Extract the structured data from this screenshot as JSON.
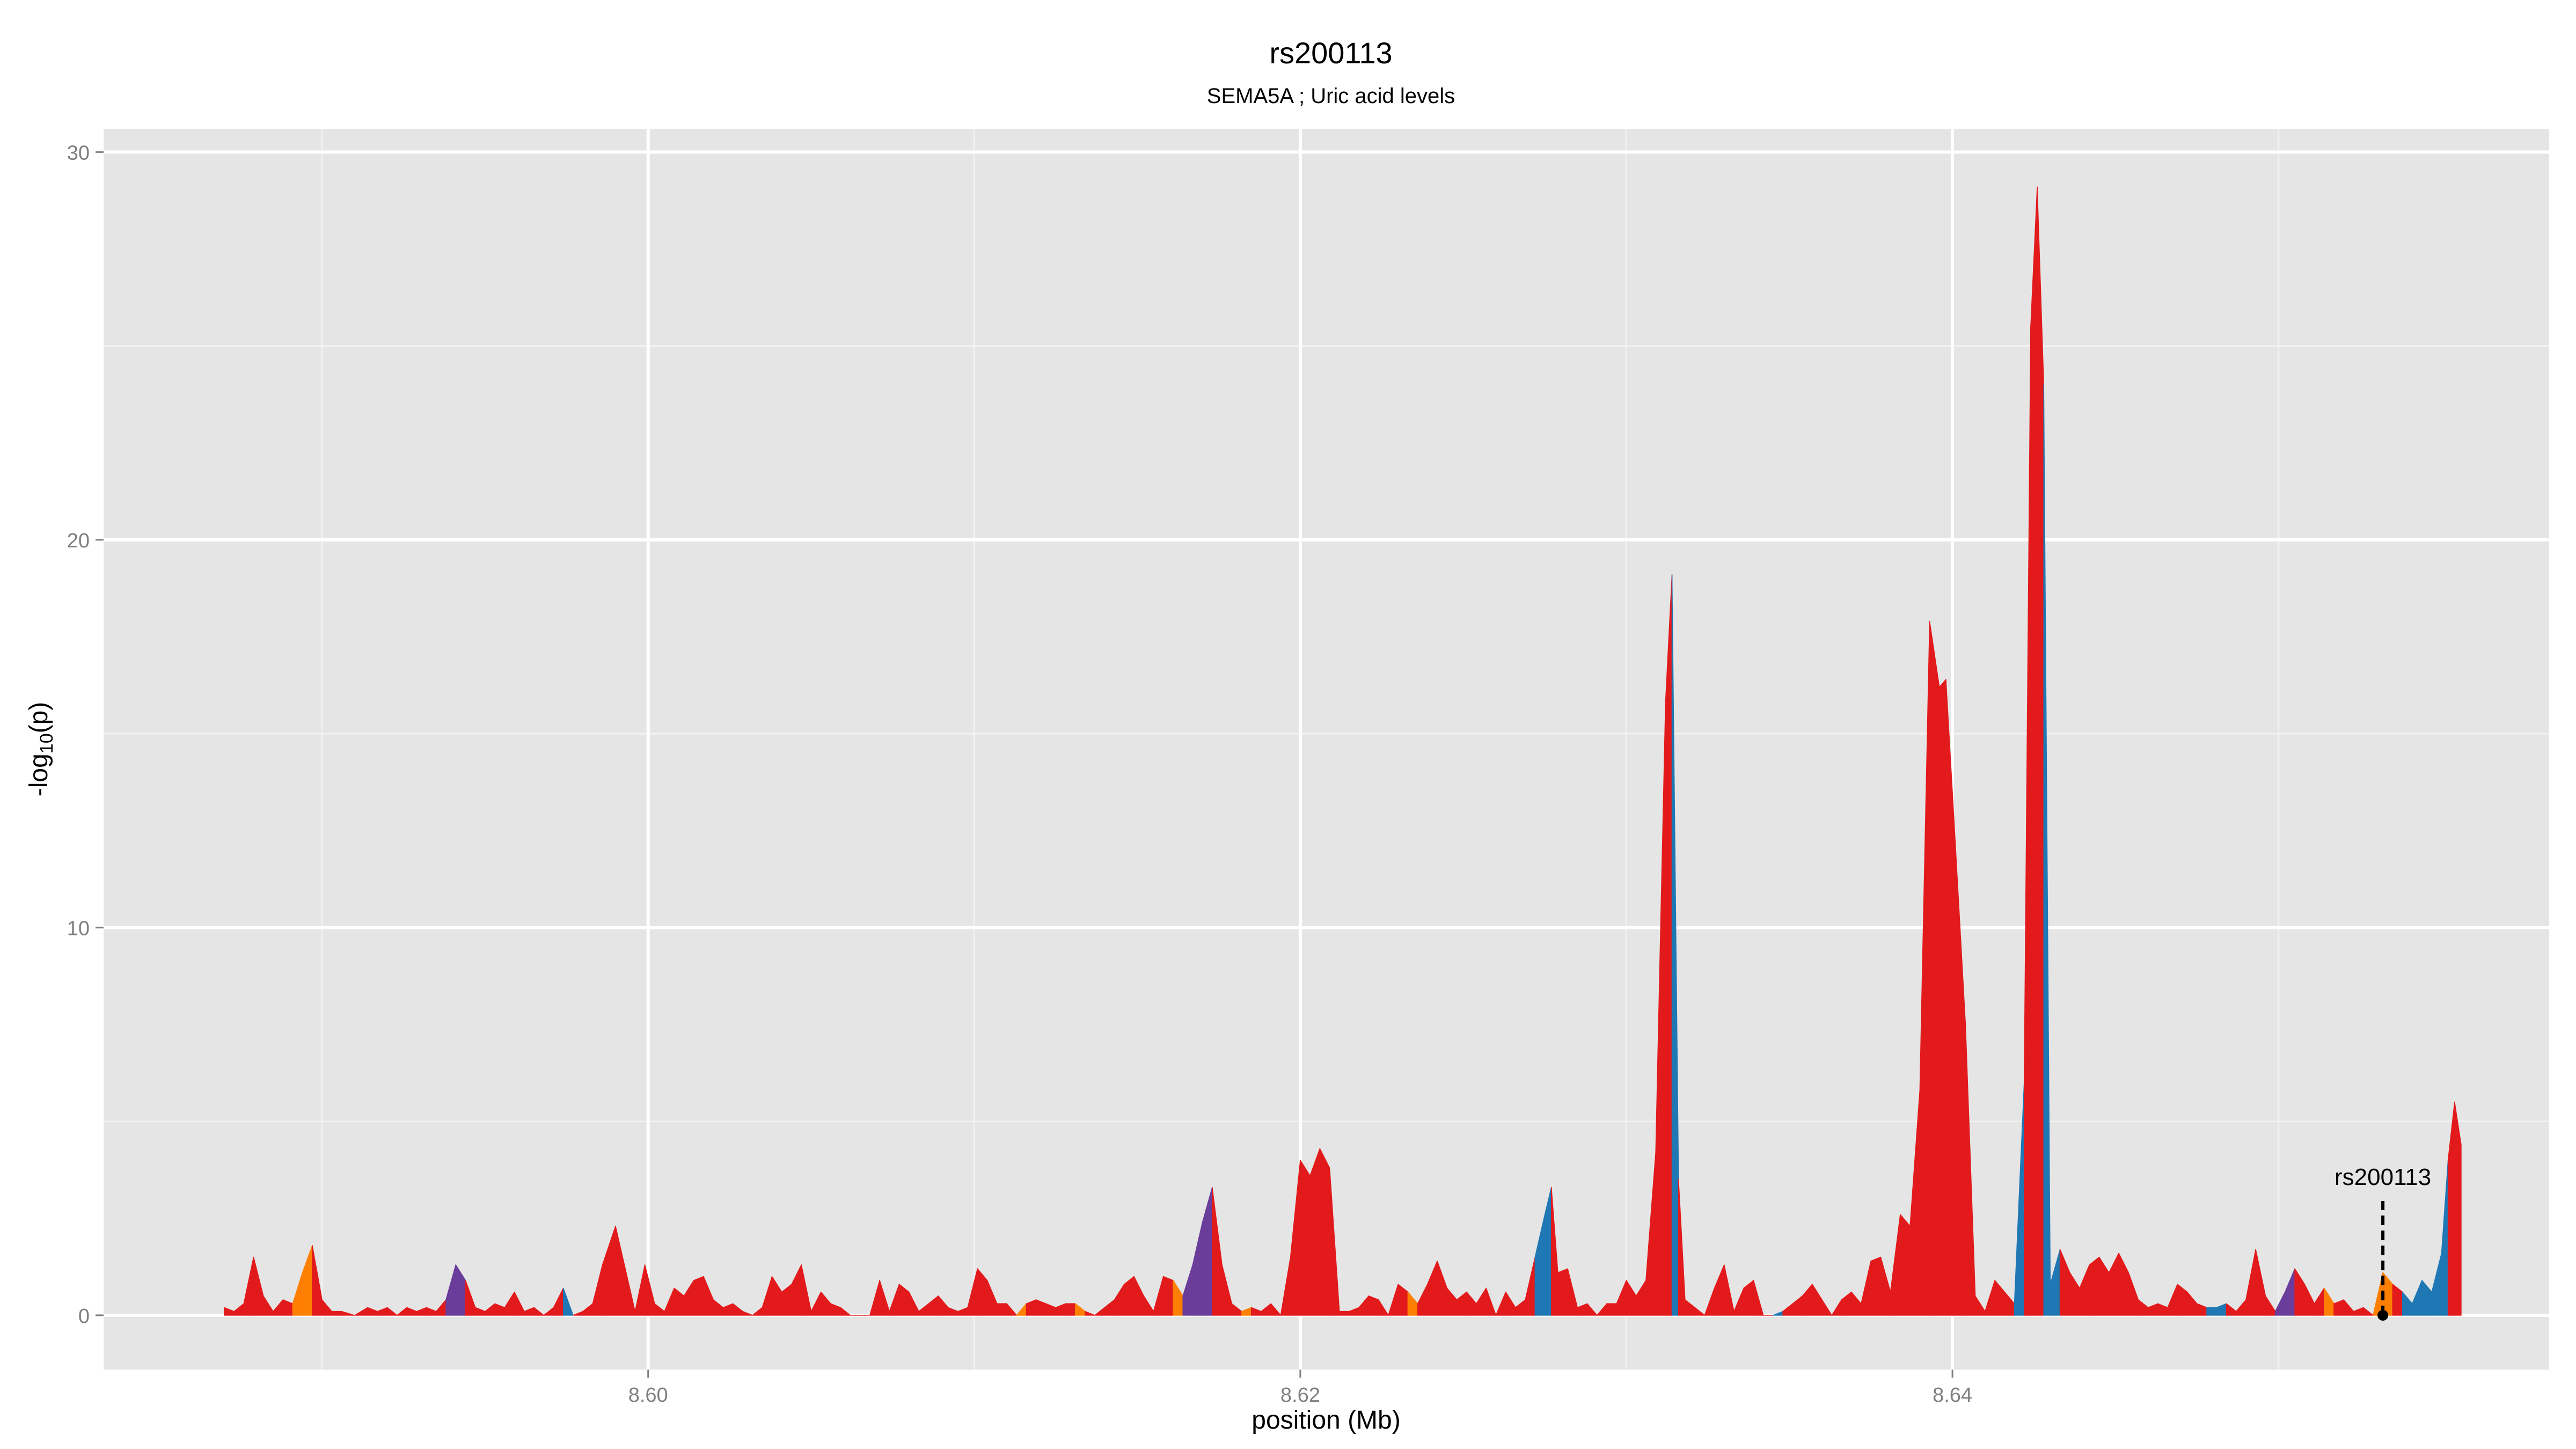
{
  "chart_data": {
    "type": "area",
    "title": "rs200113",
    "subtitle": "SEMA5A ; Uric acid levels",
    "xlabel": "position (Mb)",
    "ylabel": "-log10(p)",
    "ylabel_parts": {
      "prefix": "-log",
      "sub": "10",
      "suffix": "(p)"
    },
    "xlim": [
      8.5833,
      8.6583
    ],
    "ylim": [
      -1.4,
      30.6
    ],
    "xticks": [
      8.6,
      8.62,
      8.64
    ],
    "xtick_labels": [
      "8.60",
      "8.62",
      "8.64"
    ],
    "yticks": [
      0,
      10,
      20,
      30
    ],
    "ytick_labels": [
      "0",
      "10",
      "20",
      "30"
    ],
    "grid": true,
    "background": "#e5e5e5",
    "colors": {
      "red": "#e31a1c",
      "blue": "#1f78b4",
      "orange": "#ff7f00",
      "purple": "#6a3d9a"
    },
    "series": [
      {
        "points": [
          [
            8.587,
            0.2,
            "red"
          ],
          [
            8.5873,
            0.1,
            "red"
          ],
          [
            8.5876,
            0.3,
            "red"
          ],
          [
            8.5879,
            1.5,
            "red"
          ],
          [
            8.5882,
            0.5,
            "red"
          ],
          [
            8.5885,
            0.1,
            "red"
          ],
          [
            8.5888,
            0.4,
            "red"
          ],
          [
            8.5891,
            0.3,
            "red"
          ],
          [
            8.5894,
            1.1,
            "orange"
          ],
          [
            8.5897,
            1.8,
            "orange"
          ],
          [
            8.59,
            0.4,
            "red"
          ],
          [
            8.5903,
            0.1,
            "red"
          ],
          [
            8.5906,
            0.1,
            "red"
          ],
          [
            8.591,
            0.0,
            "red"
          ],
          [
            8.5914,
            0.2,
            "red"
          ],
          [
            8.5917,
            0.1,
            "red"
          ],
          [
            8.592,
            0.2,
            "red"
          ],
          [
            8.5923,
            0.0,
            "red"
          ],
          [
            8.5926,
            0.2,
            "red"
          ],
          [
            8.5929,
            0.1,
            "red"
          ],
          [
            8.5932,
            0.2,
            "red"
          ],
          [
            8.5935,
            0.1,
            "red"
          ],
          [
            8.5938,
            0.4,
            "red"
          ],
          [
            8.5941,
            1.3,
            "purple"
          ],
          [
            8.5944,
            0.9,
            "purple"
          ],
          [
            8.5947,
            0.2,
            "red"
          ],
          [
            8.595,
            0.1,
            "red"
          ],
          [
            8.5953,
            0.3,
            "red"
          ],
          [
            8.5956,
            0.2,
            "red"
          ],
          [
            8.5959,
            0.6,
            "red"
          ],
          [
            8.5962,
            0.1,
            "red"
          ],
          [
            8.5965,
            0.2,
            "red"
          ],
          [
            8.5968,
            0.0,
            "red"
          ],
          [
            8.5971,
            0.2,
            "red"
          ],
          [
            8.5974,
            0.7,
            "red"
          ],
          [
            8.5977,
            0.0,
            "blue"
          ],
          [
            8.598,
            0.1,
            "red"
          ],
          [
            8.5983,
            0.3,
            "red"
          ],
          [
            8.5986,
            1.3,
            "red"
          ],
          [
            8.599,
            2.3,
            "red"
          ],
          [
            8.5993,
            1.2,
            "red"
          ],
          [
            8.5996,
            0.1,
            "red"
          ],
          [
            8.5999,
            1.3,
            "red"
          ],
          [
            8.6002,
            0.3,
            "red"
          ],
          [
            8.6005,
            0.1,
            "red"
          ],
          [
            8.6008,
            0.7,
            "red"
          ],
          [
            8.6011,
            0.5,
            "red"
          ],
          [
            8.6014,
            0.9,
            "red"
          ],
          [
            8.6017,
            1.0,
            "red"
          ],
          [
            8.602,
            0.4,
            "red"
          ],
          [
            8.6023,
            0.2,
            "red"
          ],
          [
            8.6026,
            0.3,
            "red"
          ],
          [
            8.6029,
            0.1,
            "red"
          ],
          [
            8.6032,
            0.0,
            "red"
          ],
          [
            8.6035,
            0.2,
            "red"
          ],
          [
            8.6038,
            1.0,
            "red"
          ],
          [
            8.6041,
            0.6,
            "red"
          ],
          [
            8.6044,
            0.8,
            "red"
          ],
          [
            8.6047,
            1.3,
            "red"
          ],
          [
            8.605,
            0.1,
            "red"
          ],
          [
            8.6053,
            0.6,
            "red"
          ],
          [
            8.6056,
            0.3,
            "red"
          ],
          [
            8.6059,
            0.2,
            "red"
          ],
          [
            8.6062,
            0.0,
            "red"
          ],
          [
            8.6065,
            0.0,
            "red"
          ],
          [
            8.6068,
            0.0,
            "red"
          ],
          [
            8.6071,
            0.9,
            "red"
          ],
          [
            8.6074,
            0.1,
            "red"
          ],
          [
            8.6077,
            0.8,
            "red"
          ],
          [
            8.608,
            0.6,
            "red"
          ],
          [
            8.6083,
            0.1,
            "red"
          ],
          [
            8.6086,
            0.3,
            "red"
          ],
          [
            8.6089,
            0.5,
            "red"
          ],
          [
            8.6092,
            0.2,
            "red"
          ],
          [
            8.6095,
            0.1,
            "red"
          ],
          [
            8.6098,
            0.2,
            "red"
          ],
          [
            8.6101,
            1.2,
            "red"
          ],
          [
            8.6104,
            0.9,
            "red"
          ],
          [
            8.6107,
            0.3,
            "red"
          ],
          [
            8.611,
            0.3,
            "red"
          ],
          [
            8.6113,
            0.0,
            "red"
          ],
          [
            8.6116,
            0.3,
            "orange"
          ],
          [
            8.6119,
            0.4,
            "red"
          ],
          [
            8.6122,
            0.3,
            "red"
          ],
          [
            8.6125,
            0.2,
            "red"
          ],
          [
            8.6128,
            0.3,
            "red"
          ],
          [
            8.6131,
            0.3,
            "red"
          ],
          [
            8.6134,
            0.1,
            "orange"
          ],
          [
            8.6137,
            0.0,
            "red"
          ],
          [
            8.614,
            0.2,
            "red"
          ],
          [
            8.6143,
            0.4,
            "red"
          ],
          [
            8.6146,
            0.8,
            "red"
          ],
          [
            8.6149,
            1.0,
            "red"
          ],
          [
            8.6152,
            0.5,
            "red"
          ],
          [
            8.6155,
            0.1,
            "red"
          ],
          [
            8.6158,
            1.0,
            "red"
          ],
          [
            8.6161,
            0.9,
            "red"
          ],
          [
            8.6164,
            0.5,
            "orange"
          ],
          [
            8.6167,
            1.3,
            "purple"
          ],
          [
            8.617,
            2.4,
            "purple"
          ],
          [
            8.6173,
            3.3,
            "purple"
          ],
          [
            8.6176,
            1.3,
            "red"
          ],
          [
            8.6179,
            0.3,
            "red"
          ],
          [
            8.6182,
            0.1,
            "red"
          ],
          [
            8.6185,
            0.2,
            "orange"
          ],
          [
            8.6188,
            0.1,
            "red"
          ],
          [
            8.6191,
            0.3,
            "red"
          ],
          [
            8.6194,
            0.0,
            "red"
          ],
          [
            8.6197,
            1.5,
            "red"
          ],
          [
            8.62,
            4.0,
            "red"
          ],
          [
            8.6203,
            3.6,
            "red"
          ],
          [
            8.6206,
            4.3,
            "red"
          ],
          [
            8.6209,
            3.8,
            "red"
          ],
          [
            8.6212,
            0.1,
            "red"
          ],
          [
            8.6215,
            0.1,
            "red"
          ],
          [
            8.6218,
            0.2,
            "red"
          ],
          [
            8.6221,
            0.5,
            "red"
          ],
          [
            8.6224,
            0.4,
            "red"
          ],
          [
            8.6227,
            0.0,
            "red"
          ],
          [
            8.623,
            0.8,
            "red"
          ],
          [
            8.6233,
            0.6,
            "red"
          ],
          [
            8.6236,
            0.3,
            "orange"
          ],
          [
            8.6239,
            0.8,
            "red"
          ],
          [
            8.6242,
            1.4,
            "red"
          ],
          [
            8.6245,
            0.7,
            "red"
          ],
          [
            8.6248,
            0.4,
            "red"
          ],
          [
            8.6251,
            0.6,
            "red"
          ],
          [
            8.6254,
            0.3,
            "red"
          ],
          [
            8.6257,
            0.7,
            "red"
          ],
          [
            8.626,
            0.0,
            "red"
          ],
          [
            8.6263,
            0.6,
            "red"
          ],
          [
            8.6266,
            0.2,
            "red"
          ],
          [
            8.6269,
            0.4,
            "red"
          ],
          [
            8.6272,
            1.5,
            "red"
          ],
          [
            8.6275,
            2.6,
            "blue"
          ],
          [
            8.6277,
            3.3,
            "blue"
          ],
          [
            8.6279,
            1.1,
            "red"
          ],
          [
            8.6282,
            1.2,
            "red"
          ],
          [
            8.6285,
            0.2,
            "red"
          ],
          [
            8.6288,
            0.3,
            "red"
          ],
          [
            8.6291,
            0.0,
            "red"
          ],
          [
            8.6294,
            0.3,
            "red"
          ],
          [
            8.6297,
            0.3,
            "red"
          ],
          [
            8.63,
            0.9,
            "red"
          ],
          [
            8.6303,
            0.5,
            "red"
          ],
          [
            8.6306,
            0.9,
            "red"
          ],
          [
            8.6309,
            4.2,
            "red"
          ],
          [
            8.6312,
            15.8,
            "red"
          ],
          [
            8.6314,
            19.1,
            "red"
          ],
          [
            8.6316,
            3.5,
            "blue"
          ],
          [
            8.6318,
            0.4,
            "red"
          ],
          [
            8.6321,
            0.2,
            "red"
          ],
          [
            8.6324,
            0.0,
            "red"
          ],
          [
            8.6327,
            0.7,
            "red"
          ],
          [
            8.633,
            1.3,
            "red"
          ],
          [
            8.6333,
            0.1,
            "red"
          ],
          [
            8.6336,
            0.7,
            "red"
          ],
          [
            8.6339,
            0.9,
            "red"
          ],
          [
            8.6342,
            0.0,
            "red"
          ],
          [
            8.6345,
            0.0,
            "red"
          ],
          [
            8.6348,
            0.1,
            "blue"
          ],
          [
            8.6351,
            0.3,
            "red"
          ],
          [
            8.6354,
            0.5,
            "red"
          ],
          [
            8.6357,
            0.8,
            "red"
          ],
          [
            8.636,
            0.4,
            "red"
          ],
          [
            8.6363,
            0.0,
            "red"
          ],
          [
            8.6366,
            0.4,
            "red"
          ],
          [
            8.6369,
            0.6,
            "red"
          ],
          [
            8.6372,
            0.3,
            "red"
          ],
          [
            8.6375,
            1.4,
            "red"
          ],
          [
            8.6378,
            1.5,
            "red"
          ],
          [
            8.6381,
            0.6,
            "red"
          ],
          [
            8.6384,
            2.6,
            "red"
          ],
          [
            8.6387,
            2.3,
            "red"
          ],
          [
            8.639,
            5.8,
            "red"
          ],
          [
            8.6393,
            17.9,
            "red"
          ],
          [
            8.6396,
            16.2,
            "red"
          ],
          [
            8.6398,
            16.4,
            "red"
          ],
          [
            8.6401,
            12.0,
            "red"
          ],
          [
            8.6404,
            7.5,
            "red"
          ],
          [
            8.6407,
            0.5,
            "red"
          ],
          [
            8.641,
            0.1,
            "red"
          ],
          [
            8.6413,
            0.9,
            "red"
          ],
          [
            8.6416,
            0.6,
            "red"
          ],
          [
            8.6419,
            0.3,
            "red"
          ],
          [
            8.6422,
            6.0,
            "blue"
          ],
          [
            8.6424,
            25.5,
            "red"
          ],
          [
            8.6426,
            29.1,
            "red"
          ],
          [
            8.6428,
            24.0,
            "red"
          ],
          [
            8.643,
            0.8,
            "blue"
          ],
          [
            8.6433,
            1.7,
            "blue"
          ],
          [
            8.6436,
            1.1,
            "red"
          ],
          [
            8.6439,
            0.7,
            "red"
          ],
          [
            8.6442,
            1.3,
            "red"
          ],
          [
            8.6445,
            1.5,
            "red"
          ],
          [
            8.6448,
            1.1,
            "red"
          ],
          [
            8.6451,
            1.6,
            "red"
          ],
          [
            8.6454,
            1.1,
            "red"
          ],
          [
            8.6457,
            0.4,
            "red"
          ],
          [
            8.646,
            0.2,
            "red"
          ],
          [
            8.6463,
            0.3,
            "red"
          ],
          [
            8.6466,
            0.2,
            "red"
          ],
          [
            8.6469,
            0.8,
            "red"
          ],
          [
            8.6472,
            0.6,
            "red"
          ],
          [
            8.6475,
            0.3,
            "red"
          ],
          [
            8.6478,
            0.2,
            "red"
          ],
          [
            8.6481,
            0.2,
            "blue"
          ],
          [
            8.6484,
            0.3,
            "blue"
          ],
          [
            8.6487,
            0.1,
            "red"
          ],
          [
            8.649,
            0.4,
            "red"
          ],
          [
            8.6493,
            1.7,
            "red"
          ],
          [
            8.6496,
            0.5,
            "red"
          ],
          [
            8.6499,
            0.1,
            "red"
          ],
          [
            8.6502,
            0.6,
            "purple"
          ],
          [
            8.6505,
            1.2,
            "purple"
          ],
          [
            8.6508,
            0.8,
            "red"
          ],
          [
            8.6511,
            0.3,
            "red"
          ],
          [
            8.6514,
            0.7,
            "red"
          ],
          [
            8.6517,
            0.3,
            "orange"
          ],
          [
            8.652,
            0.4,
            "red"
          ],
          [
            8.6523,
            0.1,
            "red"
          ],
          [
            8.6526,
            0.2,
            "red"
          ],
          [
            8.6529,
            0.0,
            "red"
          ],
          [
            8.6532,
            1.1,
            "orange"
          ],
          [
            8.6535,
            0.8,
            "orange"
          ],
          [
            8.6538,
            0.6,
            "red"
          ],
          [
            8.6541,
            0.3,
            "blue"
          ],
          [
            8.6544,
            0.9,
            "blue"
          ],
          [
            8.6547,
            0.6,
            "blue"
          ],
          [
            8.655,
            1.6,
            "blue"
          ],
          [
            8.6552,
            4.0,
            "blue"
          ],
          [
            8.6554,
            5.5,
            "red"
          ],
          [
            8.6556,
            4.4,
            "red"
          ]
        ]
      }
    ],
    "annotation": {
      "label": "rs200113",
      "x": 8.6532,
      "y": 0.0,
      "label_y": 3.5
    }
  }
}
